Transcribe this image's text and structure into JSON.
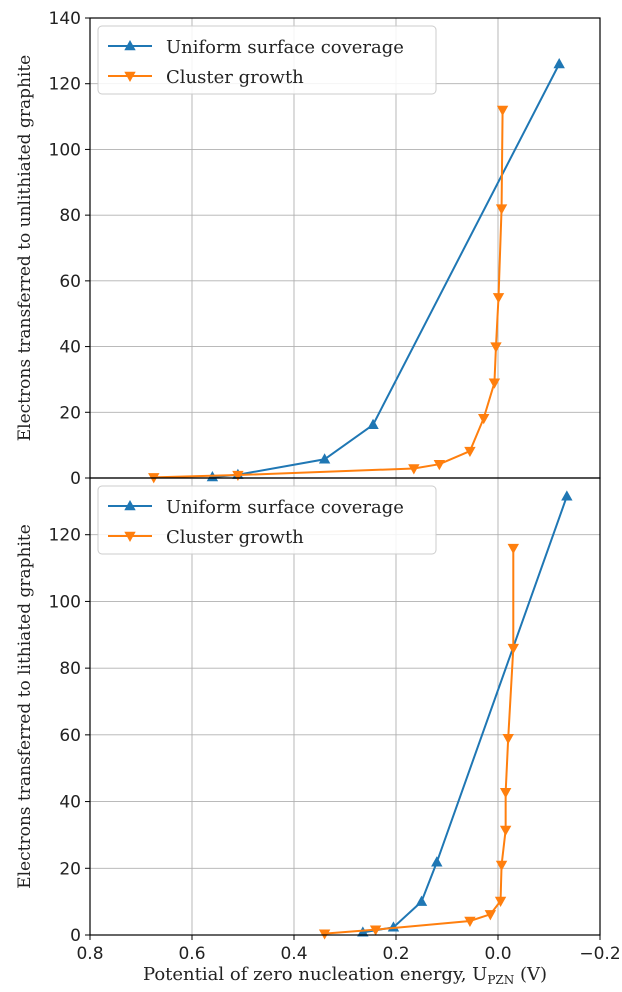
{
  "chart_data": {
    "shared_x": {
      "label": "Potential of zero nucleation energy, U",
      "label_sub": "PZN",
      "label_unit": " (V)",
      "xlim": [
        0.8,
        -0.2
      ],
      "ticks": [
        0.8,
        0.6,
        0.4,
        0.2,
        0.0,
        -0.2
      ],
      "tick_labels": [
        "0.8",
        "0.6",
        "0.4",
        "0.2",
        "0.0",
        "−0.2"
      ]
    },
    "panels": [
      {
        "type": "line",
        "ylabel": "Electrons transferred to unlithiated graphite",
        "ylim": [
          0,
          140
        ],
        "yticks": [
          0,
          20,
          40,
          60,
          80,
          100,
          120,
          140
        ],
        "grid": true,
        "legend_position": "top-left",
        "series": [
          {
            "name": "Uniform surface coverage",
            "color": "#1f77b4",
            "marker": "triangle-up",
            "points": [
              [
                0.56,
                0.3
              ],
              [
                0.51,
                1.0
              ],
              [
                0.34,
                5.7
              ],
              [
                0.245,
                16.2
              ],
              [
                -0.12,
                126
              ]
            ]
          },
          {
            "name": "Cluster growth",
            "color": "#ff7f0e",
            "marker": "triangle-down",
            "points": [
              [
                0.675,
                0.2
              ],
              [
                0.51,
                0.9
              ],
              [
                0.165,
                2.9
              ],
              [
                0.115,
                4.2
              ],
              [
                0.055,
                8.2
              ],
              [
                0.028,
                18.2
              ],
              [
                0.007,
                29.0
              ],
              [
                0.004,
                40.0
              ],
              [
                -0.001,
                55.0
              ],
              [
                -0.007,
                82.0
              ],
              [
                -0.009,
                112.0
              ]
            ]
          }
        ]
      },
      {
        "type": "line",
        "ylabel": "Electrons transferred to lithiated graphite",
        "ylim": [
          0,
          137
        ],
        "yticks": [
          0,
          20,
          40,
          60,
          80,
          100,
          120
        ],
        "grid": true,
        "legend_position": "top-left",
        "series": [
          {
            "name": "Uniform surface coverage",
            "color": "#1f77b4",
            "marker": "triangle-up",
            "points": [
              [
                0.265,
                0.8
              ],
              [
                0.205,
                2.3
              ],
              [
                0.15,
                10.0
              ],
              [
                0.12,
                21.8
              ],
              [
                -0.135,
                131.5
              ]
            ]
          },
          {
            "name": "Cluster growth",
            "color": "#ff7f0e",
            "marker": "triangle-down",
            "points": [
              [
                0.34,
                0.4
              ],
              [
                0.24,
                1.6
              ],
              [
                0.055,
                4.2
              ],
              [
                0.015,
                6.2
              ],
              [
                -0.005,
                10.2
              ],
              [
                -0.007,
                21.0
              ],
              [
                -0.015,
                31.5
              ],
              [
                -0.015,
                42.8
              ],
              [
                -0.02,
                59.0
              ],
              [
                -0.03,
                86.0
              ],
              [
                -0.03,
                116.0
              ]
            ]
          }
        ]
      }
    ]
  }
}
